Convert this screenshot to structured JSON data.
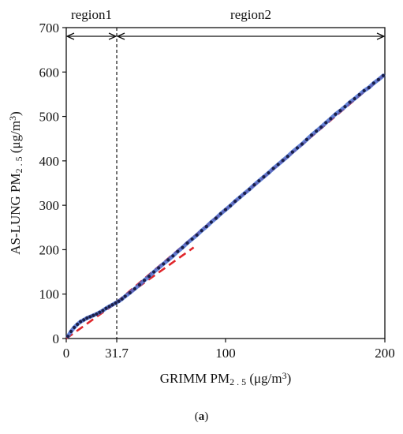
{
  "caption": {
    "open": "(",
    "letter": "a",
    "close": ")"
  },
  "chart_data": {
    "type": "scatter",
    "xlabel": "GRIMM PM2.5 (μg/m3)",
    "ylabel": "AS-LUNG PM2.5 (μg/m3)",
    "xlim": [
      0,
      200
    ],
    "ylim": [
      0,
      700
    ],
    "x_ticks": [
      0,
      31.7,
      100,
      200
    ],
    "x_tick_labels": [
      "0",
      "31.7",
      "100",
      "200"
    ],
    "y_ticks": [
      0,
      100,
      200,
      300,
      400,
      500,
      600,
      700
    ],
    "grid": false,
    "regions": [
      {
        "label": "region1",
        "x_range": [
          0,
          31.7
        ]
      },
      {
        "label": "region2",
        "x_range": [
          31.7,
          200
        ]
      }
    ],
    "boundary_x": 31.7,
    "colors": {
      "points": "#1a1f4a",
      "fit_smooth": "#4a6fd1",
      "fit_linear": "#e0262b",
      "boundary": "#111111"
    },
    "fit_lines": [
      {
        "style": "dashed",
        "color": "#e0262b",
        "x": [
          0,
          80
        ],
        "y": [
          0,
          205
        ]
      },
      {
        "style": "dashed",
        "color": "#e0262b",
        "x": [
          31.7,
          200
        ],
        "y": [
          82,
          595
        ]
      }
    ],
    "series": [
      {
        "type": "scatter",
        "points": [
          [
            1,
            5
          ],
          [
            3,
            16
          ],
          [
            5,
            25
          ],
          [
            7,
            32
          ],
          [
            9,
            38
          ],
          [
            11,
            42
          ],
          [
            13,
            46
          ],
          [
            15,
            49
          ],
          [
            17,
            52
          ],
          [
            19,
            55
          ],
          [
            21,
            59
          ],
          [
            23,
            63
          ],
          [
            25,
            68
          ],
          [
            27,
            72
          ],
          [
            29,
            76
          ],
          [
            31,
            80
          ],
          [
            33,
            84
          ],
          [
            35,
            89
          ],
          [
            37,
            95
          ],
          [
            40,
            103
          ],
          [
            43,
            112
          ],
          [
            46,
            121
          ],
          [
            49,
            131
          ],
          [
            52,
            140
          ],
          [
            55,
            150
          ],
          [
            58,
            159
          ],
          [
            61,
            168
          ],
          [
            64,
            177
          ],
          [
            67,
            186
          ],
          [
            70,
            196
          ],
          [
            73,
            205
          ],
          [
            76,
            215
          ],
          [
            79,
            224
          ],
          [
            82,
            233
          ],
          [
            85,
            243
          ],
          [
            88,
            252
          ],
          [
            91,
            262
          ],
          [
            94,
            271
          ],
          [
            97,
            281
          ],
          [
            100,
            290
          ],
          [
            103,
            299
          ],
          [
            106,
            309
          ],
          [
            109,
            318
          ],
          [
            112,
            327
          ],
          [
            115,
            336
          ],
          [
            118,
            346
          ],
          [
            121,
            355
          ],
          [
            124,
            364
          ],
          [
            127,
            373
          ],
          [
            130,
            383
          ],
          [
            133,
            392
          ],
          [
            136,
            401
          ],
          [
            139,
            410
          ],
          [
            142,
            420
          ],
          [
            145,
            429
          ],
          [
            148,
            438
          ],
          [
            151,
            448
          ],
          [
            154,
            458
          ],
          [
            157,
            467
          ],
          [
            160,
            476
          ],
          [
            163,
            486
          ],
          [
            166,
            495
          ],
          [
            169,
            505
          ],
          [
            172,
            513
          ],
          [
            175,
            522
          ],
          [
            178,
            532
          ],
          [
            181,
            540
          ],
          [
            184,
            549
          ],
          [
            187,
            558
          ],
          [
            190,
            565
          ],
          [
            193,
            575
          ],
          [
            196,
            583
          ],
          [
            199,
            592
          ]
        ]
      }
    ]
  }
}
